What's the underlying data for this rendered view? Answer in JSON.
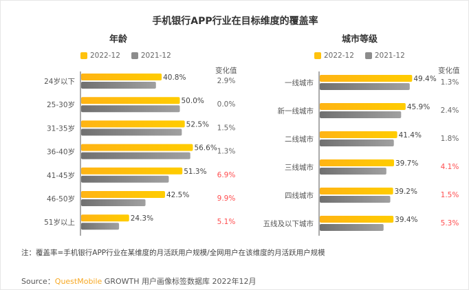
{
  "title": "手机银行APP行业在目标维度的覆盖率",
  "note": "注：覆盖率=手机银行APP行业在某维度的月活跃用户规模/全网用户在该维度的月活跃用户规模",
  "source": {
    "prefix": "Source：",
    "brand": "QuestMobile",
    "rest": " GROWTH 用户画像标签数据库 2022年12月"
  },
  "colors": {
    "series_2022": "#ffc20e",
    "series_2021": "#8c8c8c",
    "highlight": "#ff4d4f",
    "normal": "#666666"
  },
  "chart_data": [
    {
      "type": "bar",
      "orientation": "horizontal",
      "title": "年龄",
      "change_header": "变化值",
      "legend": [
        "2022-12",
        "2021-12"
      ],
      "legend_position": "top",
      "categories": [
        "24岁以下",
        "25-30岁",
        "31-35岁",
        "36-40岁",
        "41-45岁",
        "46-50岁",
        "51岁以上"
      ],
      "series": [
        {
          "name": "2022-12",
          "values": [
            40.8,
            50.0,
            52.5,
            56.6,
            51.3,
            42.5,
            24.3
          ],
          "labels": [
            "40.8%",
            "50.0%",
            "52.5%",
            "56.6%",
            "51.3%",
            "42.5%",
            "24.3%"
          ]
        },
        {
          "name": "2021-12",
          "values": [
            37.9,
            50.0,
            51.0,
            55.3,
            44.4,
            32.6,
            19.2
          ]
        }
      ],
      "changes": [
        "2.9%",
        "0.0%",
        "1.5%",
        "1.3%",
        "6.9%",
        "9.9%",
        "5.1%"
      ],
      "change_highlight": [
        false,
        false,
        false,
        false,
        true,
        true,
        true
      ]
    },
    {
      "type": "bar",
      "orientation": "horizontal",
      "title": "城市等级",
      "change_header": "变化值",
      "legend": [
        "2022-12",
        "2021-12"
      ],
      "legend_position": "top",
      "categories": [
        "一线城市",
        "新一线城市",
        "二线城市",
        "三线城市",
        "四线城市",
        "五线及以下城市"
      ],
      "series": [
        {
          "name": "2022-12",
          "values": [
            49.4,
            45.9,
            41.4,
            39.7,
            39.2,
            39.4
          ],
          "labels": [
            "49.4%",
            "45.9%",
            "41.4%",
            "39.7%",
            "39.2%",
            "39.4%"
          ]
        },
        {
          "name": "2021-12",
          "values": [
            48.1,
            43.5,
            39.6,
            35.6,
            37.7,
            34.1
          ]
        }
      ],
      "changes": [
        "1.3%",
        "2.4%",
        "1.8%",
        "4.1%",
        "1.5%",
        "5.3%"
      ],
      "change_highlight": [
        false,
        false,
        false,
        true,
        true,
        true
      ]
    }
  ]
}
